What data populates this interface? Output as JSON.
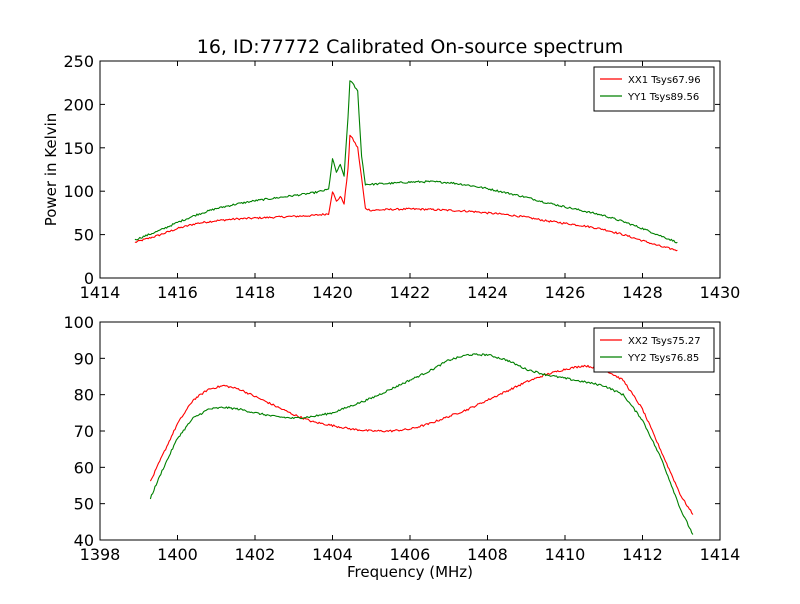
{
  "figure": {
    "title": "16, ID:77772 Calibrated On-source spectrum"
  },
  "chart_data": [
    {
      "type": "line",
      "title": "16, ID:77772 Calibrated On-source spectrum",
      "xlabel": "",
      "ylabel": "Power in Kelvin",
      "xlim": [
        1414,
        1430
      ],
      "ylim": [
        0,
        250
      ],
      "xticks": [
        "1414",
        "1416",
        "1418",
        "1420",
        "1422",
        "1424",
        "1426",
        "1428",
        "1430"
      ],
      "yticks": [
        "0",
        "50",
        "100",
        "150",
        "200",
        "250"
      ],
      "legend_position": "top-right",
      "grid": false,
      "series": [
        {
          "name": "XX1 Tsys67.96",
          "color": "#ff0000",
          "x": [
            1414.9,
            1415.5,
            1416.0,
            1416.5,
            1417.0,
            1417.5,
            1418.0,
            1418.5,
            1419.0,
            1419.5,
            1419.9,
            1420.0,
            1420.1,
            1420.2,
            1420.3,
            1420.4,
            1420.45,
            1420.55,
            1420.65,
            1420.75,
            1420.85,
            1421.0,
            1421.5,
            1422.0,
            1422.5,
            1423.0,
            1423.5,
            1424.0,
            1424.5,
            1425.0,
            1425.5,
            1426.0,
            1426.5,
            1427.0,
            1427.5,
            1428.0,
            1428.5,
            1428.9
          ],
          "values": [
            41,
            49,
            57,
            63,
            66,
            68,
            69,
            70,
            71,
            72,
            74,
            100,
            88,
            94,
            86,
            125,
            165,
            158,
            150,
            115,
            80,
            78,
            79,
            79.5,
            79,
            78,
            77,
            75,
            73,
            70,
            66,
            63,
            60,
            56,
            50,
            43,
            36,
            32
          ]
        },
        {
          "name": "YY1 Tsys89.56",
          "color": "#008000",
          "x": [
            1414.9,
            1415.5,
            1416.0,
            1416.5,
            1417.0,
            1417.5,
            1418.0,
            1418.5,
            1419.0,
            1419.5,
            1419.9,
            1420.0,
            1420.1,
            1420.2,
            1420.3,
            1420.4,
            1420.45,
            1420.55,
            1420.65,
            1420.75,
            1420.85,
            1421.0,
            1421.5,
            1422.0,
            1422.5,
            1423.0,
            1423.5,
            1424.0,
            1424.5,
            1425.0,
            1425.5,
            1426.0,
            1426.5,
            1427.0,
            1427.5,
            1428.0,
            1428.5,
            1428.9
          ],
          "values": [
            44,
            54,
            64,
            73,
            80,
            85,
            89,
            92,
            95,
            98,
            102,
            137,
            122,
            130,
            118,
            185,
            228,
            222,
            215,
            140,
            108,
            108,
            109,
            110.5,
            111,
            110,
            107,
            103,
            98,
            93,
            87,
            82,
            77,
            72,
            65,
            57,
            48,
            41
          ]
        }
      ]
    },
    {
      "type": "line",
      "title": "",
      "xlabel": "Frequency (MHz)",
      "ylabel": "",
      "xlim": [
        1398,
        1414
      ],
      "ylim": [
        40,
        100
      ],
      "xticks": [
        "1398",
        "1400",
        "1402",
        "1404",
        "1406",
        "1408",
        "1410",
        "1412",
        "1414"
      ],
      "yticks": [
        "40",
        "50",
        "60",
        "70",
        "80",
        "90",
        "100"
      ],
      "legend_position": "top-right",
      "grid": false,
      "series": [
        {
          "name": "XX2 Tsys75.27",
          "color": "#ff0000",
          "x": [
            1399.3,
            1399.6,
            1400.0,
            1400.4,
            1400.8,
            1401.2,
            1401.6,
            1402.0,
            1402.5,
            1403.0,
            1403.5,
            1404.0,
            1404.5,
            1405.0,
            1405.5,
            1406.0,
            1406.5,
            1407.0,
            1407.5,
            1408.0,
            1408.5,
            1409.0,
            1409.5,
            1410.0,
            1410.5,
            1411.0,
            1411.5,
            1412.0,
            1412.5,
            1413.0,
            1413.3
          ],
          "values": [
            56,
            63,
            72,
            78.5,
            81.5,
            82.5,
            81.5,
            79.5,
            77,
            74.5,
            72.5,
            71.5,
            70.5,
            70,
            70,
            70.5,
            72,
            74,
            76,
            78.5,
            81,
            83.5,
            85.5,
            87,
            88,
            87,
            84,
            76,
            64,
            52,
            47
          ]
        },
        {
          "name": "YY2 Tsys76.85",
          "color": "#008000",
          "x": [
            1399.3,
            1399.6,
            1400.0,
            1400.4,
            1400.8,
            1401.2,
            1401.6,
            1402.0,
            1402.5,
            1403.0,
            1403.5,
            1404.0,
            1404.5,
            1405.0,
            1405.5,
            1406.0,
            1406.5,
            1407.0,
            1407.5,
            1408.0,
            1408.5,
            1409.0,
            1409.5,
            1410.0,
            1410.5,
            1411.0,
            1411.5,
            1412.0,
            1412.5,
            1413.0,
            1413.3
          ],
          "values": [
            51.5,
            59,
            68,
            73.5,
            76,
            76.5,
            76,
            75,
            74,
            73.5,
            74,
            75,
            77,
            79,
            81.5,
            84,
            86.5,
            89.5,
            91,
            91,
            89.5,
            87,
            85.5,
            84.5,
            83.5,
            82.5,
            80,
            73,
            62,
            48,
            41.5
          ]
        }
      ]
    }
  ]
}
